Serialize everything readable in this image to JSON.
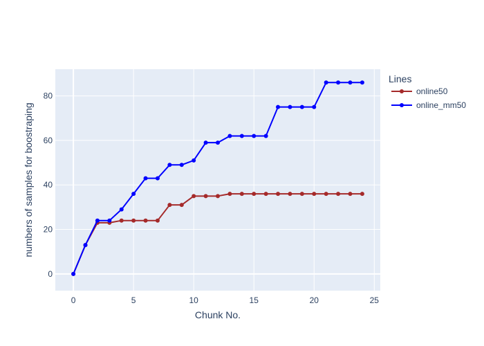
{
  "chart_data": {
    "type": "line",
    "title": "",
    "xlabel": "Chunk No.",
    "ylabel": "numbers of samples for boostraping",
    "xlim": [
      -1.5,
      25.5
    ],
    "ylim": [
      -7.5,
      92
    ],
    "x_ticks": [
      0,
      5,
      10,
      15,
      20,
      25
    ],
    "y_ticks": [
      0,
      20,
      40,
      60,
      80
    ],
    "grid": true,
    "legend": {
      "title": "Lines",
      "placement": "right"
    },
    "x": [
      0,
      1,
      2,
      3,
      4,
      5,
      6,
      7,
      8,
      9,
      10,
      11,
      12,
      13,
      14,
      15,
      16,
      17,
      18,
      19,
      20,
      21,
      22,
      23,
      24
    ],
    "series": [
      {
        "name": "online50",
        "color": "#a52a2a",
        "values": [
          0,
          13,
          23,
          23,
          24,
          24,
          24,
          24,
          31,
          31,
          35,
          35,
          35,
          36,
          36,
          36,
          36,
          36,
          36,
          36,
          36,
          36,
          36,
          36,
          36
        ]
      },
      {
        "name": "online_mm50",
        "color": "#0000ff",
        "values": [
          0,
          13,
          24,
          24,
          29,
          36,
          43,
          43,
          49,
          49,
          51,
          59,
          59,
          62,
          62,
          62,
          62,
          75,
          75,
          75,
          75,
          86,
          86,
          86,
          86
        ]
      }
    ],
    "plot_background": "#e5ecf6"
  }
}
